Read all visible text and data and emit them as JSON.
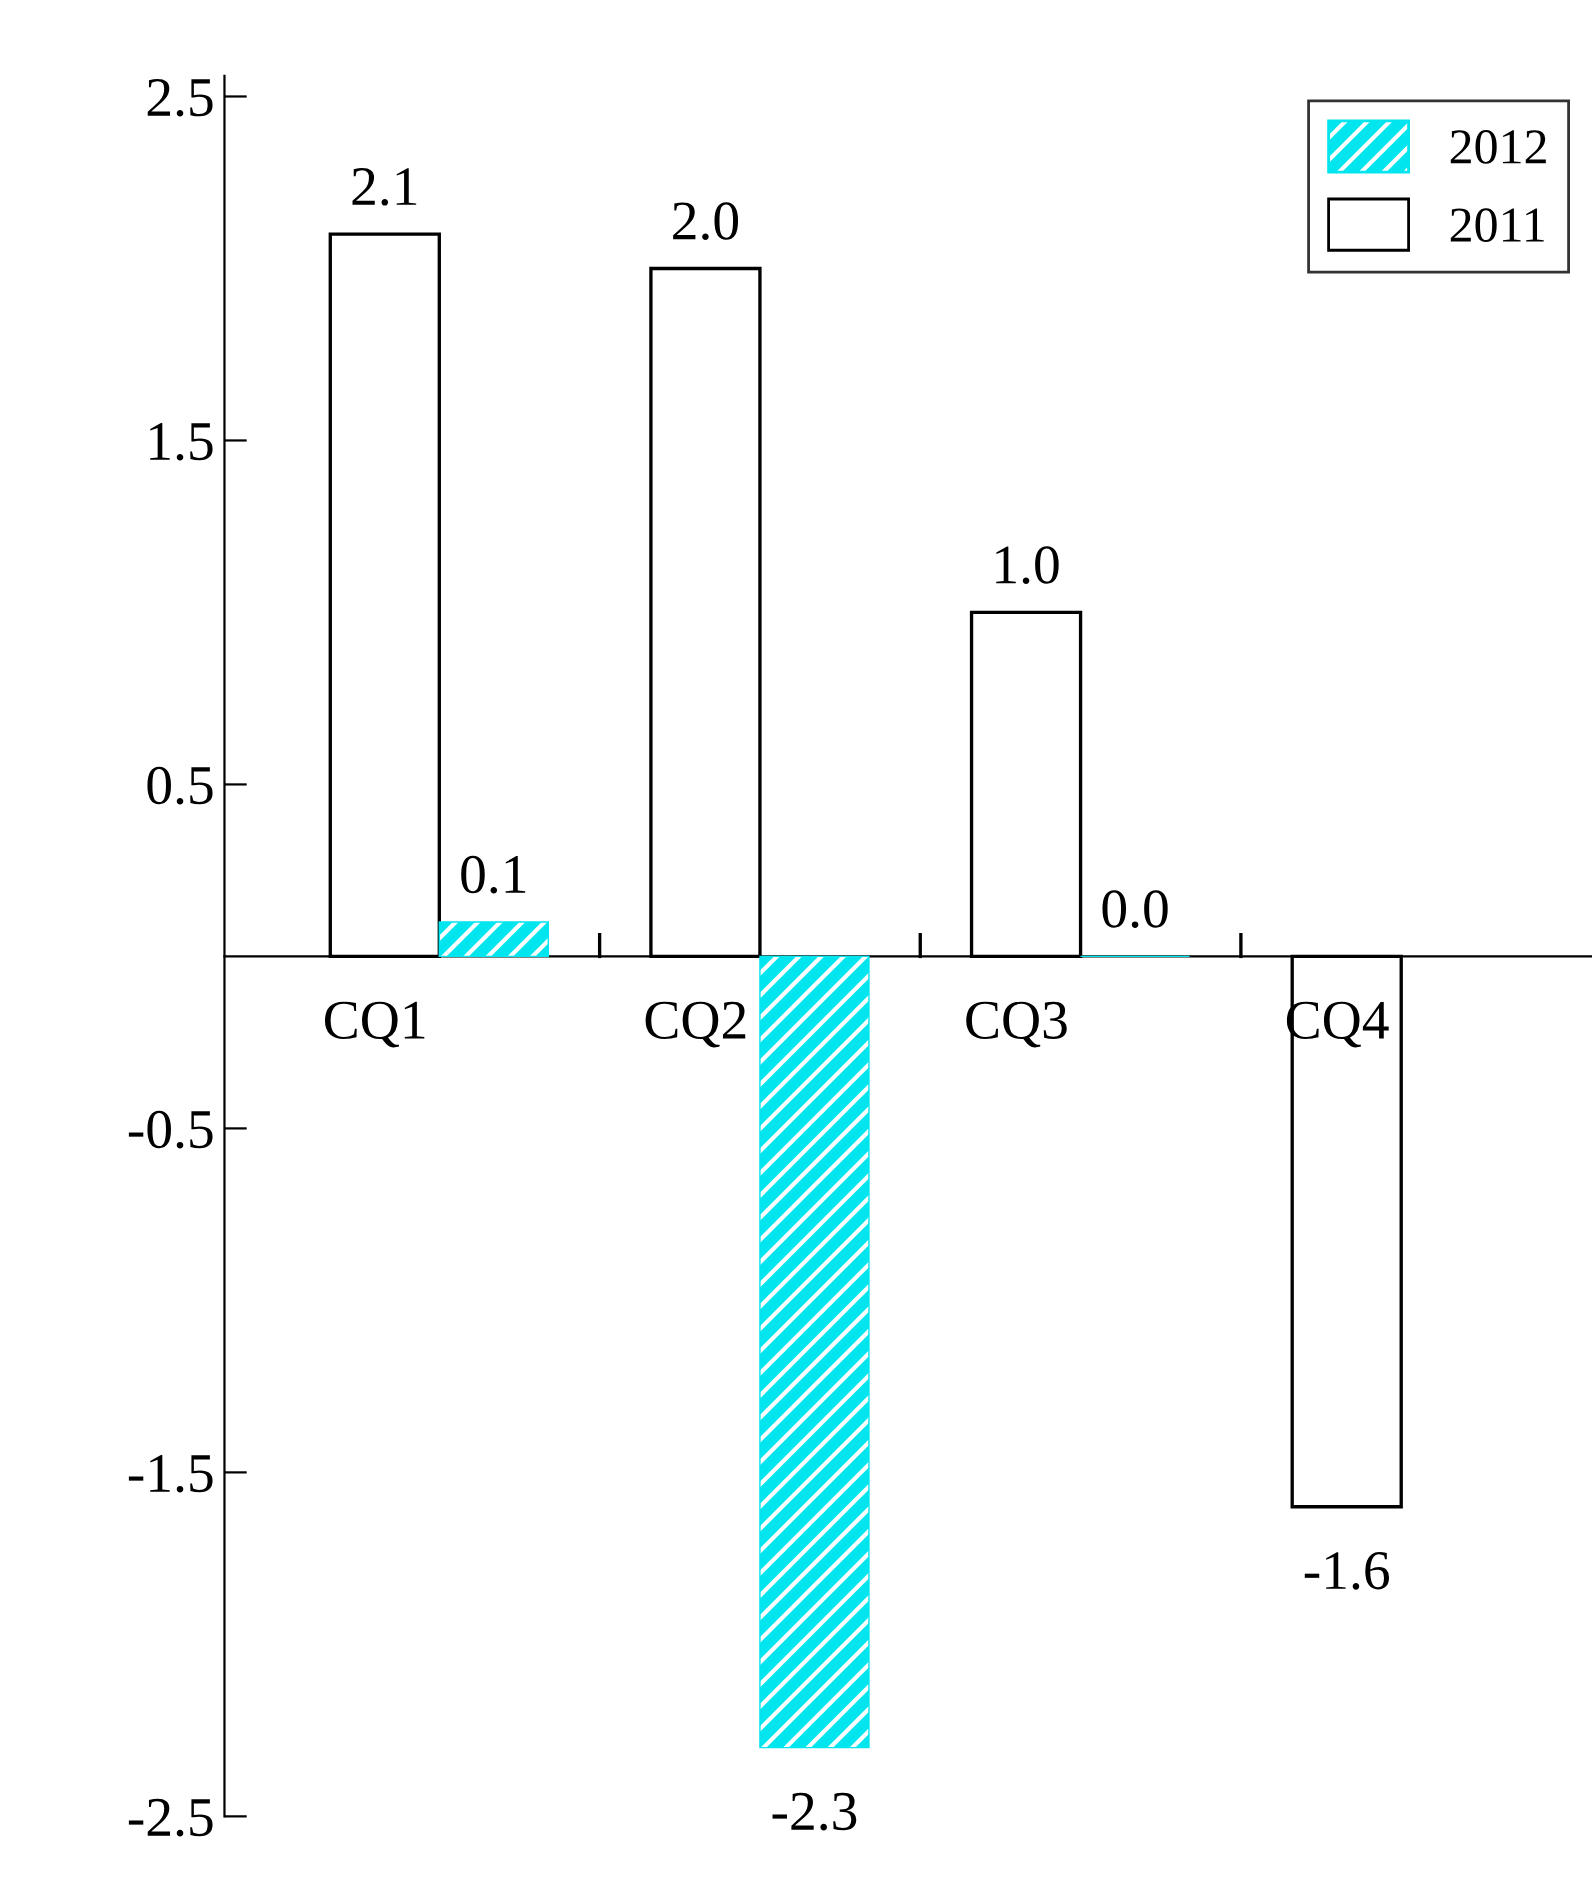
{
  "chart_data": {
    "type": "bar",
    "categories": [
      "CQ1",
      "CQ2",
      "CQ3",
      "CQ4"
    ],
    "series": [
      {
        "name": "2011",
        "color": "#ffffff",
        "values": [
          2.1,
          2.0,
          1.0,
          -1.6
        ],
        "value_labels": [
          "2.1",
          "2.0",
          "1.0",
          "-1.6"
        ]
      },
      {
        "name": "2012",
        "color": "#00e5ee",
        "values": [
          0.1,
          -2.3,
          0.0,
          null
        ],
        "value_labels": [
          "0.1",
          "-2.3",
          "0.0",
          null
        ]
      }
    ],
    "ylim": [
      -2.5,
      2.56
    ],
    "yticks": [
      2.5,
      1.5,
      0.5,
      -0.5,
      -1.5,
      -2.5
    ],
    "grid": false,
    "legend": "top right"
  }
}
